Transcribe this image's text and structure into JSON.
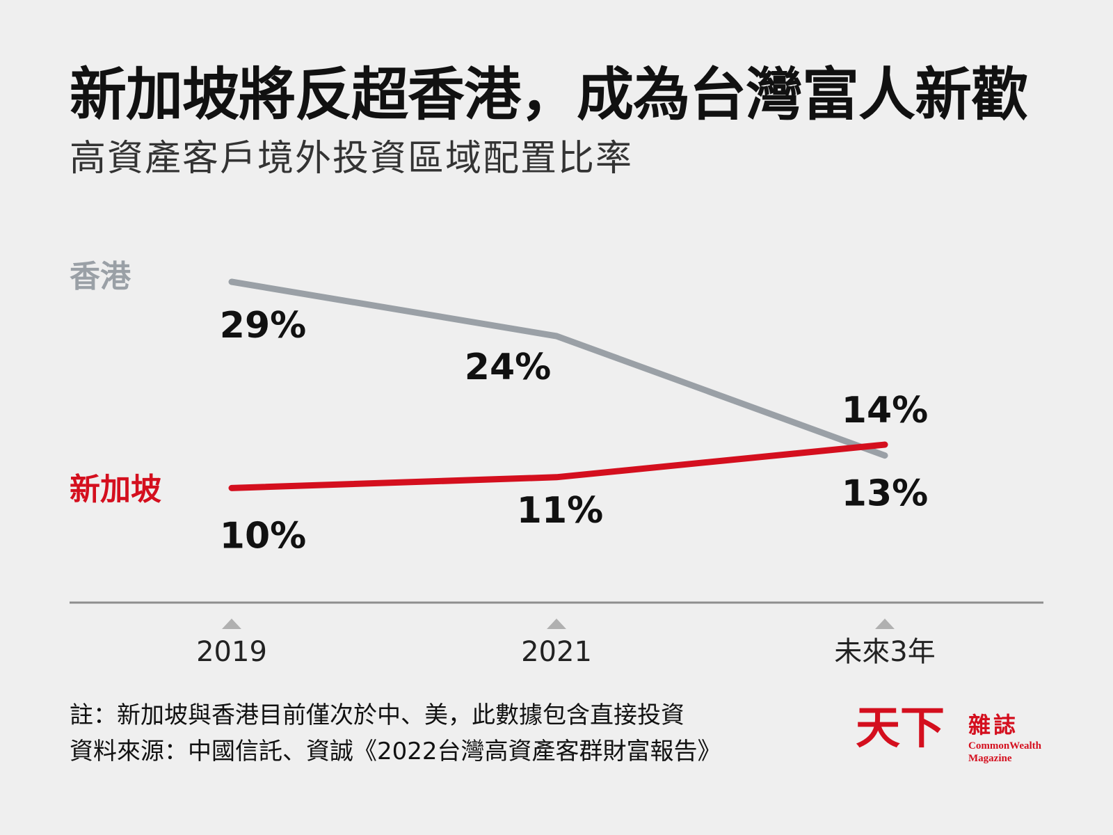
{
  "title": "新加坡將反超香港，成為台灣富人新歡",
  "subtitle": "高資產客戶境外投資區域配置比率",
  "chart_data": {
    "type": "line",
    "categories": [
      "2019",
      "2021",
      "未來3年"
    ],
    "series": [
      {
        "name": "香港",
        "values": [
          29,
          24,
          13
        ],
        "labels": [
          "29%",
          "24%",
          "13%"
        ],
        "color": "#9aa0a6"
      },
      {
        "name": "新加坡",
        "values": [
          10,
          11,
          14
        ],
        "labels": [
          "10%",
          "11%",
          "14%"
        ],
        "color": "#d40f1e"
      }
    ],
    "unit": "%",
    "grid": false
  },
  "notes": {
    "line1": "註：新加坡與香港目前僅次於中、美，此數據包含直接投資",
    "line2": "資料來源：中國信託、資誠《2022台灣高資產客群財富報告》"
  },
  "logo": {
    "mark": "天下",
    "zh": "雜誌",
    "en1": "CommonWealth",
    "en2": "Magazine"
  }
}
